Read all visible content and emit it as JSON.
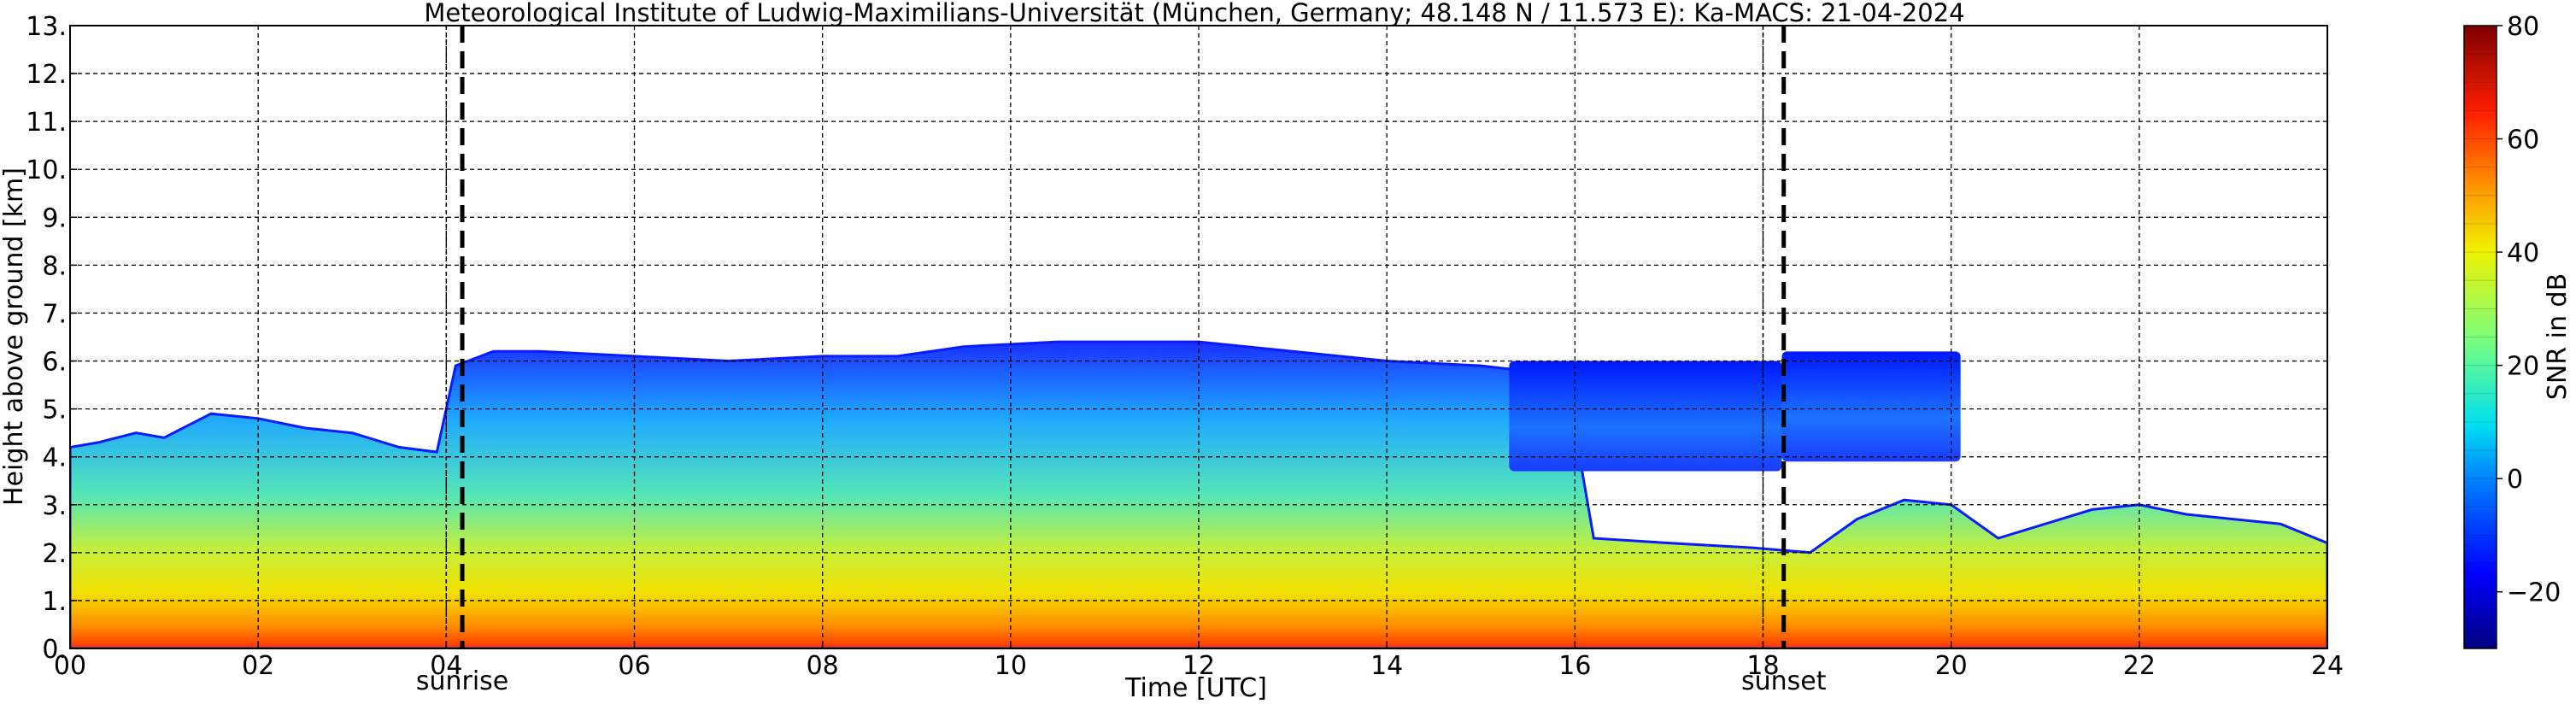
{
  "chart_data": {
    "type": "heatmap",
    "title": "Meteorological Institute of Ludwig-Maximilians-Universität (München, Germany; 48.148 N / 11.573 E):    Ka-MACS: 21-04-2024",
    "xlabel": "Time [UTC]",
    "ylabel": "Height above ground [km]",
    "colorbar_label": "SNR in dB",
    "xlim": [
      0,
      24
    ],
    "ylim": [
      0,
      13
    ],
    "x_ticks": [
      0,
      2,
      4,
      6,
      8,
      10,
      12,
      14,
      16,
      18,
      20,
      22,
      24
    ],
    "x_tick_labels": [
      "00",
      "02",
      "04",
      "06",
      "08",
      "10",
      "12",
      "14",
      "16",
      "18",
      "20",
      "22",
      "24"
    ],
    "y_ticks": [
      0,
      1,
      2,
      3,
      4,
      5,
      6,
      7,
      8,
      9,
      10,
      11,
      12,
      13
    ],
    "y_tick_labels": [
      "0.",
      "1.",
      "2.",
      "3.",
      "4.",
      "5.",
      "6.",
      "7.",
      "8.",
      "9.",
      "10.",
      "11.",
      "12.",
      "13."
    ],
    "grid": true,
    "colorbar": {
      "range": [
        -30,
        80
      ],
      "ticks": [
        -20,
        0,
        20,
        40,
        60,
        80
      ],
      "tick_labels": [
        "−20",
        "0",
        "20",
        "40",
        "60",
        "80"
      ],
      "colormap": "jet"
    },
    "events": [
      {
        "label": "sunrise",
        "x": 4.17
      },
      {
        "label": "sunset",
        "x": 18.22
      }
    ],
    "reference_lines_x": [
      4.0,
      18.0
    ],
    "echo_top_km": [
      [
        0.0,
        4.2
      ],
      [
        0.3,
        4.3
      ],
      [
        0.7,
        4.5
      ],
      [
        1.0,
        4.4
      ],
      [
        1.5,
        4.9
      ],
      [
        2.0,
        4.8
      ],
      [
        2.5,
        4.6
      ],
      [
        3.0,
        4.5
      ],
      [
        3.5,
        4.2
      ],
      [
        3.9,
        4.1
      ],
      [
        4.1,
        5.9
      ],
      [
        4.5,
        6.2
      ],
      [
        5.0,
        6.2
      ],
      [
        6.0,
        6.1
      ],
      [
        7.0,
        6.0
      ],
      [
        8.0,
        6.1
      ],
      [
        8.8,
        6.1
      ],
      [
        9.5,
        6.3
      ],
      [
        10.5,
        6.4
      ],
      [
        12.0,
        6.4
      ],
      [
        13.0,
        6.2
      ],
      [
        14.0,
        6.0
      ],
      [
        15.0,
        5.9
      ],
      [
        15.9,
        5.7
      ],
      [
        16.2,
        2.3
      ],
      [
        17.0,
        2.2
      ],
      [
        17.9,
        2.1
      ],
      [
        18.5,
        2.0
      ],
      [
        19.0,
        2.7
      ],
      [
        19.5,
        3.1
      ],
      [
        20.0,
        3.0
      ],
      [
        20.5,
        2.3
      ],
      [
        21.0,
        2.6
      ],
      [
        21.5,
        2.9
      ],
      [
        22.0,
        3.0
      ],
      [
        22.5,
        2.8
      ],
      [
        23.0,
        2.7
      ],
      [
        23.5,
        2.6
      ],
      [
        24.0,
        2.2
      ]
    ],
    "upper_layer_segments": [
      {
        "x_start": 15.3,
        "x_end": 18.2,
        "bottom_km": 3.7,
        "top_km": 6.0
      },
      {
        "x_start": 18.2,
        "x_end": 20.1,
        "bottom_km": 3.9,
        "top_km": 6.2
      }
    ]
  }
}
